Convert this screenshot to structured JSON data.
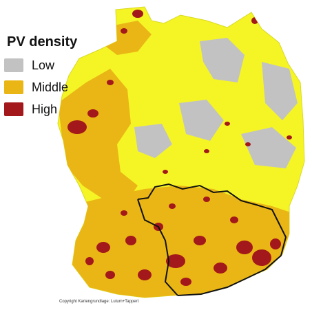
{
  "map": {
    "title": "PV density",
    "colors": {
      "low": "#c2c2c2",
      "middle": "#eab616",
      "high": "#a3181a",
      "lowlands": "#f5f526",
      "border": "#111111"
    },
    "legend": [
      {
        "label": "Low",
        "color": "#c2c2c2"
      },
      {
        "label": "Middle",
        "color": "#eab616"
      },
      {
        "label": "High",
        "color": "#a3181a"
      }
    ],
    "copyright": "Copyright Kartengrundlage: Lutum+Tappert"
  }
}
